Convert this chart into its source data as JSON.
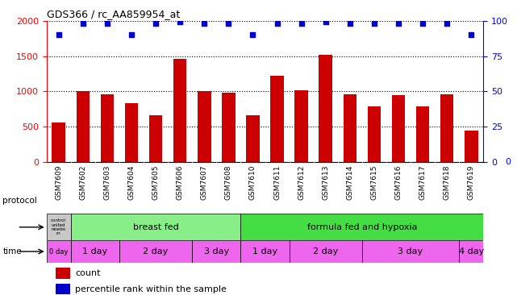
{
  "title": "GDS366 / rc_AA859954_at",
  "samples": [
    "GSM7609",
    "GSM7602",
    "GSM7603",
    "GSM7604",
    "GSM7605",
    "GSM7606",
    "GSM7607",
    "GSM7608",
    "GSM7610",
    "GSM7611",
    "GSM7612",
    "GSM7613",
    "GSM7614",
    "GSM7615",
    "GSM7616",
    "GSM7617",
    "GSM7618",
    "GSM7619"
  ],
  "counts": [
    560,
    1010,
    960,
    840,
    660,
    1460,
    1000,
    980,
    660,
    1220,
    1020,
    1520,
    960,
    790,
    950,
    790,
    960,
    450
  ],
  "percentiles": [
    90,
    98,
    98,
    90,
    98,
    99,
    98,
    98,
    90,
    98,
    98,
    99,
    98,
    98,
    98,
    98,
    98,
    90
  ],
  "bar_color": "#cc0000",
  "dot_color": "#0000cc",
  "ylim_left": [
    0,
    2000
  ],
  "ylim_right": [
    0,
    100
  ],
  "yticks_left": [
    0,
    500,
    1000,
    1500,
    2000
  ],
  "yticks_right": [
    0,
    25,
    50,
    75,
    100
  ],
  "protocol_row": {
    "control_label": "control\nunited\nnewbo\nrn",
    "breast_fed_label": "breast fed",
    "formula_label": "formula fed and hypoxia",
    "control_color": "#c8c8c8",
    "breast_color": "#88ee88",
    "formula_color": "#44dd44"
  },
  "time_row": {
    "time_color": "#ee66ee",
    "0day_color": "#ee66ee"
  },
  "protocol_spans": {
    "control": [
      0,
      1
    ],
    "breast_fed": [
      1,
      8
    ],
    "formula": [
      8,
      18
    ]
  },
  "time_spans": [
    {
      "label": "0 day",
      "start": 0,
      "end": 1
    },
    {
      "label": "1 day",
      "start": 1,
      "end": 3
    },
    {
      "label": "2 day",
      "start": 3,
      "end": 6
    },
    {
      "label": "3 day",
      "start": 6,
      "end": 8
    },
    {
      "label": "1 day",
      "start": 8,
      "end": 10
    },
    {
      "label": "2 day",
      "start": 10,
      "end": 13
    },
    {
      "label": "3 day",
      "start": 13,
      "end": 17
    },
    {
      "label": "4 day",
      "start": 17,
      "end": 18
    }
  ],
  "legend_count_color": "#cc0000",
  "legend_dot_color": "#0000cc",
  "bg_color": "#ffffff",
  "plot_bg": "#ffffff",
  "label_bg": "#d0d0d0"
}
